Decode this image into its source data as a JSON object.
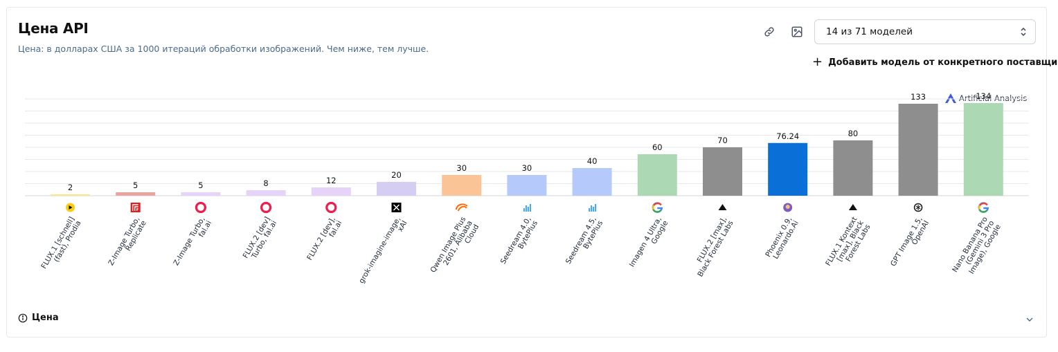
{
  "header": {
    "title": "Цена API",
    "subtitle": "Цена: в долларах США за 1000 итераций обработки изображений. Чем ниже, тем лучше."
  },
  "toolbar": {
    "link_icon": "link-icon",
    "image_download_icon": "image-download-icon",
    "model_select_value": "14 из 71 моделей",
    "add_provider_label": "Добавить модель от конкретного поставщика"
  },
  "branding": {
    "name": "Artificial Analysis"
  },
  "footer": {
    "label": "Цена",
    "info_icon": "info-icon",
    "expand_icon": "chevron-down-icon"
  },
  "chart_data": {
    "type": "bar",
    "title": "",
    "xlabel": "",
    "ylabel": "",
    "ylim": [
      0,
      140
    ],
    "grid": true,
    "categories": [
      [
        "FLUX.1 [schnell]",
        "(fast), Prodia"
      ],
      [
        "Z-Image Turbo,",
        "Replicate"
      ],
      [
        "Z-Image Turbo,",
        "fal.ai"
      ],
      [
        "FLUX.2 [dev]",
        "Turbo, fal.ai"
      ],
      [
        "FLUX.2 [dev],",
        "fal.ai"
      ],
      [
        "grok-imagine-image,",
        "xAI"
      ],
      [
        "Qwen Image Plus",
        "2601, Alibaba",
        "Cloud"
      ],
      [
        "Seedream 4.0,",
        "BytePlus"
      ],
      [
        "Seedream 4.5,",
        "BytePlus"
      ],
      [
        "Imagen 4 Ultra,",
        "Google"
      ],
      [
        "FLUX.2 [max],",
        "Black Forest Labs"
      ],
      [
        "Phoenix 0.9,",
        "Leonardo.Ai"
      ],
      [
        "FLUX.1 Kontext",
        "[max], Black",
        "Forest Labs"
      ],
      [
        "GPT Image 1.5,",
        "OpenAI"
      ],
      [
        "Nano Banana Pro",
        "(Gemini 3 Pro",
        "Image), Google"
      ]
    ],
    "values": [
      2,
      5,
      5,
      8,
      12,
      20,
      30,
      30,
      40,
      60,
      70,
      76.24,
      80,
      133,
      134
    ],
    "value_labels": [
      "2",
      "5",
      "5",
      "8",
      "12",
      "20",
      "30",
      "30",
      "40",
      "60",
      "70",
      "76.24",
      "80",
      "133",
      "134"
    ],
    "colors": [
      "#fde68a",
      "#e9a6a0",
      "#e5d3f8",
      "#e5d3f8",
      "#e5d3f8",
      "#d6cdf3",
      "#fbc496",
      "#b5c9fb",
      "#b5c9fb",
      "#acd9b4",
      "#8e8e8e",
      "#0a6fd6",
      "#8e8e8e",
      "#8e8e8e",
      "#acd9b4"
    ],
    "provider_icons": [
      "prodia-icon",
      "replicate-icon",
      "fal-icon",
      "fal-icon",
      "fal-icon",
      "xai-icon",
      "alibaba-icon",
      "byteplus-icon",
      "byteplus-icon",
      "google-icon",
      "bfl-icon",
      "leonardo-icon",
      "bfl-icon",
      "openai-icon",
      "google-icon"
    ]
  }
}
